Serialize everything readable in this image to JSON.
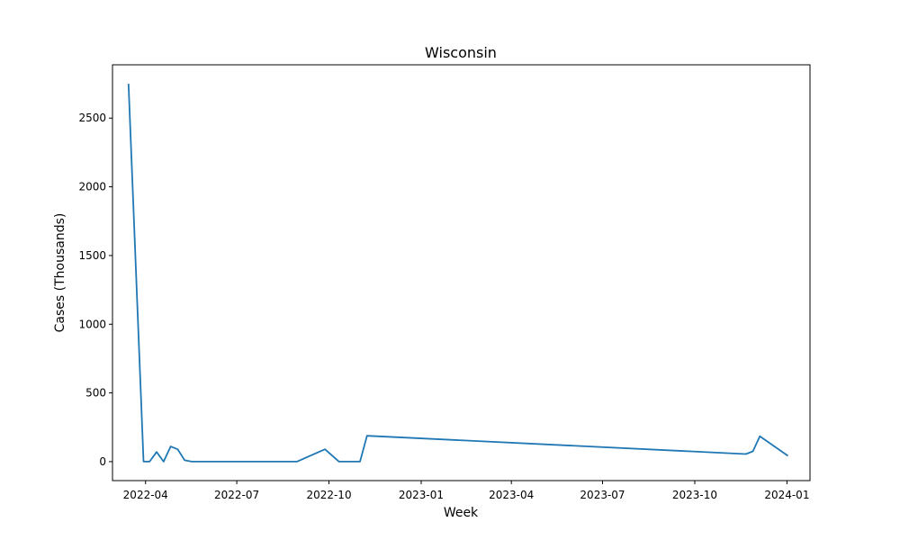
{
  "chart_data": {
    "type": "line",
    "title": "Wisconsin",
    "xlabel": "Week",
    "ylabel": "Cases (Thousands)",
    "x_ticks": [
      "2022-04-01",
      "2022-07-01",
      "2022-10-01",
      "2023-01-01",
      "2023-04-01",
      "2023-07-01",
      "2023-10-01",
      "2024-01-01"
    ],
    "x_tick_labels": [
      "2022-04",
      "2022-07",
      "2022-10",
      "2023-01",
      "2023-04",
      "2023-07",
      "2023-10",
      "2024-01"
    ],
    "y_ticks": [
      0,
      500,
      1000,
      1500,
      2000,
      2500
    ],
    "y_tick_labels": [
      "0",
      "500",
      "1000",
      "1500",
      "2000",
      "2500"
    ],
    "xlim": [
      "2022-02-27",
      "2024-01-24"
    ],
    "ylim": [
      -138,
      2888
    ],
    "grid": false,
    "series": [
      {
        "color": "#1f77b4",
        "x": [
          "2022-03-15",
          "2022-03-30",
          "2022-04-05",
          "2022-04-12",
          "2022-04-19",
          "2022-04-26",
          "2022-05-03",
          "2022-05-10",
          "2022-05-17",
          "2022-08-30",
          "2022-09-27",
          "2022-10-11",
          "2022-11-01",
          "2022-11-08",
          "2023-11-21",
          "2023-11-28",
          "2023-12-05",
          "2024-01-02"
        ],
        "values": [
          2750,
          0,
          0,
          70,
          0,
          110,
          90,
          10,
          0,
          0,
          90,
          0,
          0,
          188,
          55,
          75,
          185,
          42
        ]
      }
    ]
  }
}
